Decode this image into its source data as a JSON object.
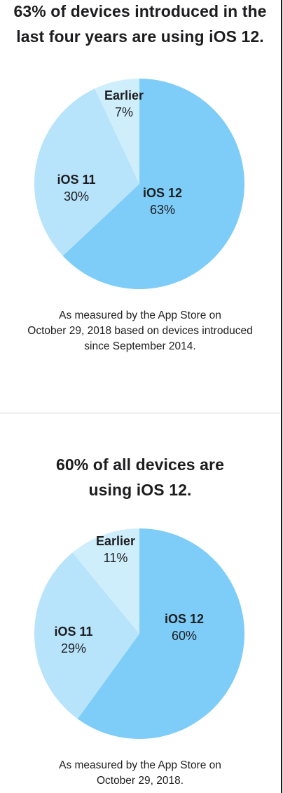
{
  "sections": [
    {
      "title_lines": [
        "63% of devices introduced in the",
        "last four years are using iOS 12."
      ],
      "caption_lines": [
        "As measured by the App Store on",
        "October 29, 2018 based on devices introduced",
        "since September 2014."
      ]
    },
    {
      "title_lines": [
        "60% of all devices are",
        "using iOS 12."
      ],
      "caption_lines": [
        "As measured by the App Store on",
        "October 29, 2018."
      ]
    }
  ],
  "colors": {
    "ios12": "#7ecdf8",
    "ios11": "#b7e3fb",
    "earlier": "#cfeefc",
    "text": "#1d1d1f"
  },
  "chart_data": [
    {
      "type": "pie",
      "title": "63% of devices introduced in the last four years are using iOS 12.",
      "unit": "%",
      "slices": [
        {
          "name": "iOS 12",
          "value": 63,
          "label": "63%"
        },
        {
          "name": "iOS 11",
          "value": 30,
          "label": "30%"
        },
        {
          "name": "Earlier",
          "value": 7,
          "label": "7%"
        }
      ]
    },
    {
      "type": "pie",
      "title": "60% of all devices are using iOS 12.",
      "unit": "%",
      "slices": [
        {
          "name": "iOS 12",
          "value": 60,
          "label": "60%"
        },
        {
          "name": "iOS 11",
          "value": 29,
          "label": "29%"
        },
        {
          "name": "Earlier",
          "value": 11,
          "label": "11%"
        }
      ]
    }
  ]
}
